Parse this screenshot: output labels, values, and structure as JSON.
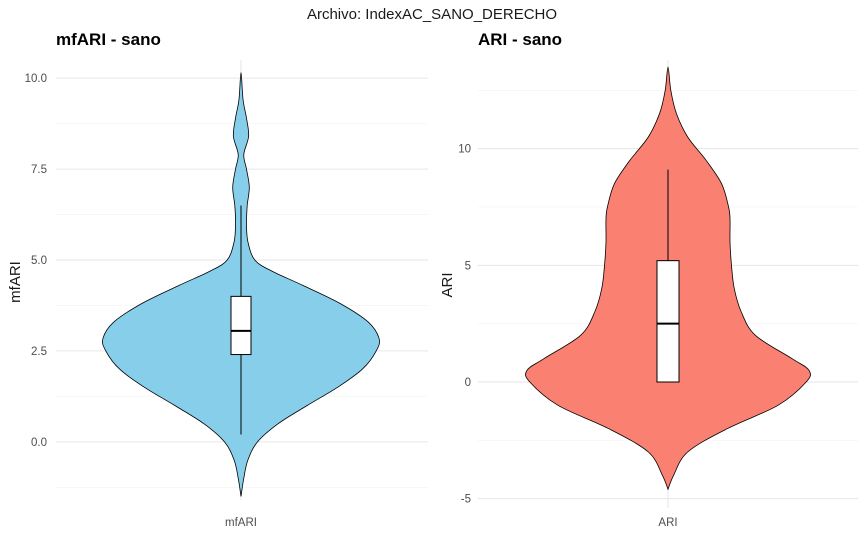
{
  "figure": {
    "suptitle": "Archivo: IndexAC_SANO_DERECHO"
  },
  "chart_data": [
    {
      "type": "violin",
      "title": "mfARI - sano",
      "xlabel": "",
      "ylabel": "mfARI",
      "categories": [
        "mfARI"
      ],
      "ylim": [
        -1.6,
        10.5
      ],
      "yticks": [
        0.0,
        2.5,
        5.0,
        7.5,
        10.0
      ],
      "ytick_labels": [
        "0.0",
        "2.5",
        "5.0",
        "7.5",
        "10.0"
      ],
      "fill_color": "#87CEEB",
      "grid": true,
      "box": {
        "whisker_low": 0.2,
        "q1": 2.4,
        "median": 3.05,
        "q3": 4.0,
        "whisker_high": 6.5
      },
      "density": [
        [
          -1.5,
          0.0
        ],
        [
          -1.0,
          0.02
        ],
        [
          -0.5,
          0.05
        ],
        [
          0.0,
          0.12
        ],
        [
          0.5,
          0.27
        ],
        [
          1.0,
          0.48
        ],
        [
          1.5,
          0.7
        ],
        [
          2.0,
          0.88
        ],
        [
          2.5,
          0.98
        ],
        [
          2.85,
          1.0
        ],
        [
          3.3,
          0.92
        ],
        [
          3.8,
          0.72
        ],
        [
          4.3,
          0.45
        ],
        [
          4.7,
          0.22
        ],
        [
          5.0,
          0.1
        ],
        [
          5.5,
          0.05
        ],
        [
          6.0,
          0.04
        ],
        [
          6.5,
          0.045
        ],
        [
          7.0,
          0.06
        ],
        [
          7.5,
          0.04
        ],
        [
          7.9,
          0.02
        ],
        [
          8.4,
          0.055
        ],
        [
          8.9,
          0.04
        ],
        [
          9.4,
          0.015
        ],
        [
          10.15,
          0.0
        ]
      ]
    },
    {
      "type": "violin",
      "title": "ARI - sano",
      "xlabel": "",
      "ylabel": "ARI",
      "categories": [
        "ARI"
      ],
      "ylim": [
        -5.4,
        13.8
      ],
      "yticks": [
        -5,
        0,
        5,
        10
      ],
      "ytick_labels": [
        "-5",
        "0",
        "5",
        "10"
      ],
      "fill_color": "#FA8072",
      "grid": true,
      "box": {
        "whisker_low": 0.0,
        "q1": 0.0,
        "median": 2.5,
        "q3": 5.2,
        "whisker_high": 9.1
      },
      "density": [
        [
          -4.6,
          0.0
        ],
        [
          -4.0,
          0.04
        ],
        [
          -3.0,
          0.14
        ],
        [
          -2.0,
          0.42
        ],
        [
          -1.0,
          0.78
        ],
        [
          0.0,
          0.98
        ],
        [
          0.5,
          1.0
        ],
        [
          1.0,
          0.88
        ],
        [
          2.0,
          0.62
        ],
        [
          3.0,
          0.52
        ],
        [
          4.0,
          0.47
        ],
        [
          5.0,
          0.45
        ],
        [
          6.0,
          0.44
        ],
        [
          7.0,
          0.44
        ],
        [
          7.5,
          0.43
        ],
        [
          8.5,
          0.38
        ],
        [
          9.5,
          0.27
        ],
        [
          10.5,
          0.14
        ],
        [
          11.5,
          0.06
        ],
        [
          12.5,
          0.02
        ],
        [
          13.5,
          0.0
        ]
      ]
    }
  ]
}
